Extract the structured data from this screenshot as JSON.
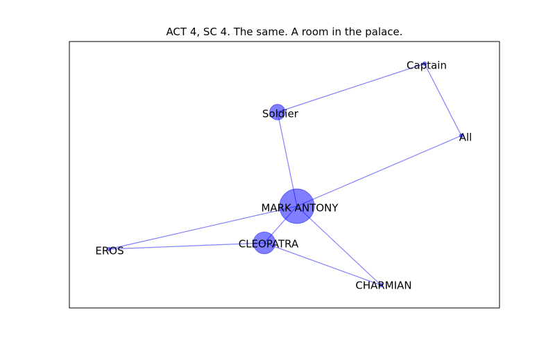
{
  "title": "ACT 4, SC 4. The same. A room in the palace.",
  "colors": {
    "node": "#0000ff",
    "edge": "#0000ff",
    "frame": "#000000",
    "label": "#000000"
  },
  "nodes": [
    {
      "id": "MARK ANTONY",
      "label": "MARK ANTONY",
      "weight": 5
    },
    {
      "id": "CLEOPATRA",
      "label": "CLEOPATRA",
      "weight": 2
    },
    {
      "id": "Soldier",
      "label": "Soldier",
      "weight": 1
    },
    {
      "id": "Captain",
      "label": "Captain",
      "weight": 0
    },
    {
      "id": "All",
      "label": "All",
      "weight": 0
    },
    {
      "id": "EROS",
      "label": "EROS",
      "weight": 0
    },
    {
      "id": "CHARMIAN",
      "label": "CHARMIAN",
      "weight": 0
    }
  ],
  "edges": [
    [
      "MARK ANTONY",
      "Soldier"
    ],
    [
      "MARK ANTONY",
      "All"
    ],
    [
      "MARK ANTONY",
      "EROS"
    ],
    [
      "MARK ANTONY",
      "CLEOPATRA"
    ],
    [
      "MARK ANTONY",
      "CHARMIAN"
    ],
    [
      "Soldier",
      "Captain"
    ],
    [
      "Captain",
      "All"
    ],
    [
      "EROS",
      "CLEOPATRA"
    ],
    [
      "CLEOPATRA",
      "CHARMIAN"
    ]
  ]
}
